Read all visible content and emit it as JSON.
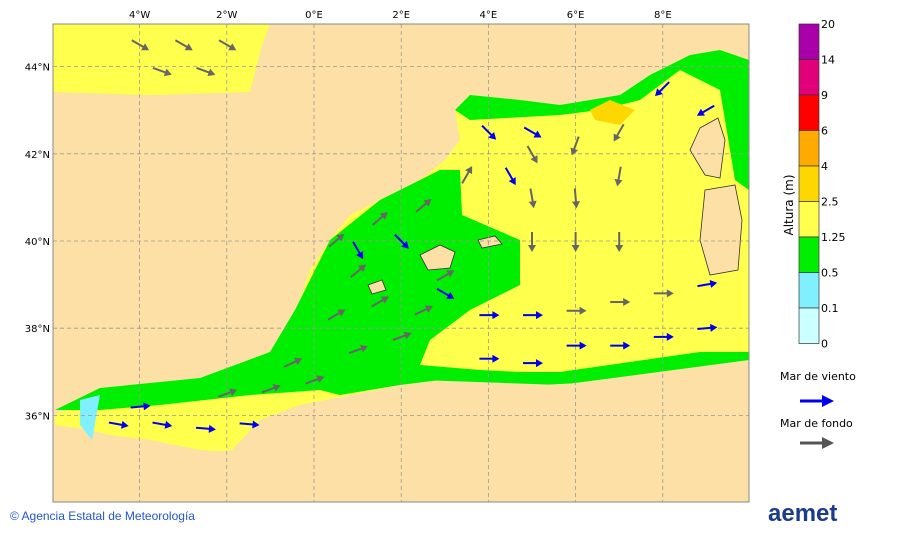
{
  "map": {
    "lon_labels": [
      "4°W",
      "2°W",
      "0°E",
      "2°E",
      "4°E",
      "6°E",
      "8°E"
    ],
    "lon_values": [
      -4,
      -2,
      0,
      2,
      4,
      6,
      8
    ],
    "lat_labels": [
      "44°N",
      "42°N",
      "40°N",
      "38°N",
      "36°N"
    ],
    "lat_values": [
      44,
      42,
      40,
      38,
      36
    ],
    "colors": {
      "land": "#fde0a6",
      "yellow": "#ffff4d",
      "green": "#00ee00",
      "cyan": "#80f0ff",
      "wind_sea": "#0000ee",
      "swell": "#666666"
    },
    "arrows": [
      [
        -4.5,
        35.8,
        10,
        "w"
      ],
      [
        -3.5,
        35.8,
        10,
        "w"
      ],
      [
        -2.5,
        35.7,
        5,
        "w"
      ],
      [
        -1.5,
        35.8,
        5,
        "w"
      ],
      [
        -4,
        36.2,
        -5,
        "w"
      ],
      [
        -2,
        36.5,
        -20,
        "s"
      ],
      [
        -1,
        36.6,
        -20,
        "s"
      ],
      [
        0,
        36.8,
        -20,
        "s"
      ],
      [
        -0.5,
        37.2,
        -25,
        "s"
      ],
      [
        1,
        37.5,
        -20,
        "s"
      ],
      [
        2,
        37.8,
        -20,
        "s"
      ],
      [
        0.5,
        38.3,
        -30,
        "s"
      ],
      [
        1.5,
        38.6,
        -30,
        "s"
      ],
      [
        2.5,
        38.4,
        -25,
        "s"
      ],
      [
        3,
        39.2,
        -30,
        "s"
      ],
      [
        1,
        39.3,
        -40,
        "s"
      ],
      [
        0.5,
        40,
        -40,
        "s"
      ],
      [
        1.5,
        40.5,
        -40,
        "s"
      ],
      [
        2.5,
        40.8,
        -40,
        "s"
      ],
      [
        3.5,
        41.5,
        -60,
        "s"
      ],
      [
        1,
        39.8,
        60,
        "w"
      ],
      [
        2,
        40,
        45,
        "w"
      ],
      [
        3,
        38.8,
        30,
        "w"
      ],
      [
        4,
        38.3,
        0,
        "w"
      ],
      [
        5,
        38.3,
        0,
        "w"
      ],
      [
        5,
        40,
        90,
        "s"
      ],
      [
        6,
        40,
        90,
        "s"
      ],
      [
        7,
        40,
        90,
        "s"
      ],
      [
        5,
        41,
        80,
        "s"
      ],
      [
        6,
        41,
        85,
        "s"
      ],
      [
        7,
        41.5,
        100,
        "s"
      ],
      [
        5,
        42,
        60,
        "s"
      ],
      [
        6,
        42.2,
        110,
        "s"
      ],
      [
        7,
        42.5,
        120,
        "s"
      ],
      [
        4,
        42.5,
        45,
        "w"
      ],
      [
        5,
        42.5,
        30,
        "w"
      ],
      [
        4.5,
        41.5,
        60,
        "w"
      ],
      [
        8,
        43.5,
        135,
        "w"
      ],
      [
        9,
        43,
        150,
        "w"
      ],
      [
        6,
        37.6,
        0,
        "w"
      ],
      [
        7,
        37.6,
        0,
        "w"
      ],
      [
        8,
        37.8,
        0,
        "w"
      ],
      [
        9,
        38,
        -5,
        "w"
      ],
      [
        4,
        37.3,
        0,
        "w"
      ],
      [
        5,
        37.2,
        0,
        "w"
      ],
      [
        6,
        38.4,
        0,
        "s"
      ],
      [
        7,
        38.6,
        0,
        "s"
      ],
      [
        8,
        38.8,
        0,
        "s"
      ],
      [
        9,
        39,
        -10,
        "w"
      ],
      [
        -4,
        44.5,
        30,
        "s"
      ],
      [
        -3,
        44.5,
        30,
        "s"
      ],
      [
        -2,
        44.5,
        30,
        "s"
      ],
      [
        -3.5,
        43.9,
        20,
        "s"
      ],
      [
        -2.5,
        43.9,
        20,
        "s"
      ]
    ]
  },
  "legend": {
    "title": "Altura (m)",
    "levels": [
      "20",
      "14",
      "9",
      "6",
      "4",
      "2.5",
      "1.25",
      "0.5",
      "0.1",
      "0"
    ],
    "colors": [
      "#aa00aa",
      "#e2007a",
      "#ff0000",
      "#ffaa00",
      "#ffd700",
      "#ffff4d",
      "#00ee00",
      "#80f0ff",
      "#ccffff"
    ],
    "wind_sea_label": "Mar de viento",
    "swell_label": "Mar de fondo"
  },
  "footer": {
    "copyright": "© Agencia Estatal de Meteorología",
    "logo": "aemet"
  }
}
